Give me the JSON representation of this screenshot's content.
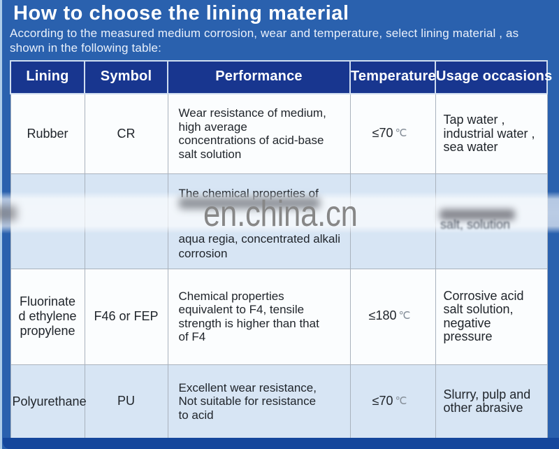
{
  "header": {
    "title": "How to choose the lining material",
    "subtitle_line1": "According to the measured medium corrosion, wear and temperature, select lining material , as",
    "subtitle_line2": "shown in the following table:"
  },
  "table": {
    "columns": [
      "Lining",
      "Symbol",
      "Performance",
      "Temperature",
      "Usage occasions"
    ],
    "rows": [
      {
        "lining_lines": [
          "Rubber"
        ],
        "symbol": "CR",
        "performance_lines": [
          "Wear resistance of medium,",
          "high average",
          "concentrations of acid-base",
          "salt solution"
        ],
        "temperature": "≤70",
        "temperature_unit": "℃",
        "usage_lines": [
          "Tap water ,",
          "industrial water ,",
          "sea water"
        ]
      },
      {
        "lining_lines": [],
        "symbol": "",
        "performance_lines": [
          "The chemical properties of",
          "",
          "",
          "aqua regia, concentrated alkali",
          "corrosion"
        ],
        "temperature": "",
        "temperature_unit": "",
        "usage_fragment": "salt, solution"
      },
      {
        "lining_lines": [
          "Fluorinate",
          "d ethylene",
          "propylene"
        ],
        "symbol": "F46 or FEP",
        "performance_lines": [
          "Chemical properties",
          "equivalent to F4, tensile",
          "strength is higher than that",
          "of F4"
        ],
        "temperature": "≤180",
        "temperature_unit": "℃",
        "usage_lines": [
          "Corrosive acid",
          "salt solution,",
          "negative",
          "pressure"
        ]
      },
      {
        "lining_lines": [
          "Polyurethane"
        ],
        "symbol": "PU",
        "performance_lines": [
          "Excellent wear resistance,",
          "Not suitable for resistance",
          "to acid"
        ],
        "temperature": "≤70",
        "temperature_unit": "℃",
        "usage_lines": [
          "Slurry, pulp and",
          "other abrasive"
        ]
      }
    ]
  },
  "watermark": {
    "text": "en.china.cn"
  },
  "colors": {
    "page_background": "#2a61ae",
    "left_edge_strip": "#aecdea",
    "title_text": "#ffffff",
    "header_cell_background": "#18368f",
    "header_cell_text": "#ffffff",
    "row_background_white": "#fbfdfe",
    "row_background_blue": "#d7e5f4",
    "body_text": "#20252b",
    "cell_border": "#a9b2bd",
    "footer_bar": "#15479c",
    "watermark_text": "#878787"
  }
}
